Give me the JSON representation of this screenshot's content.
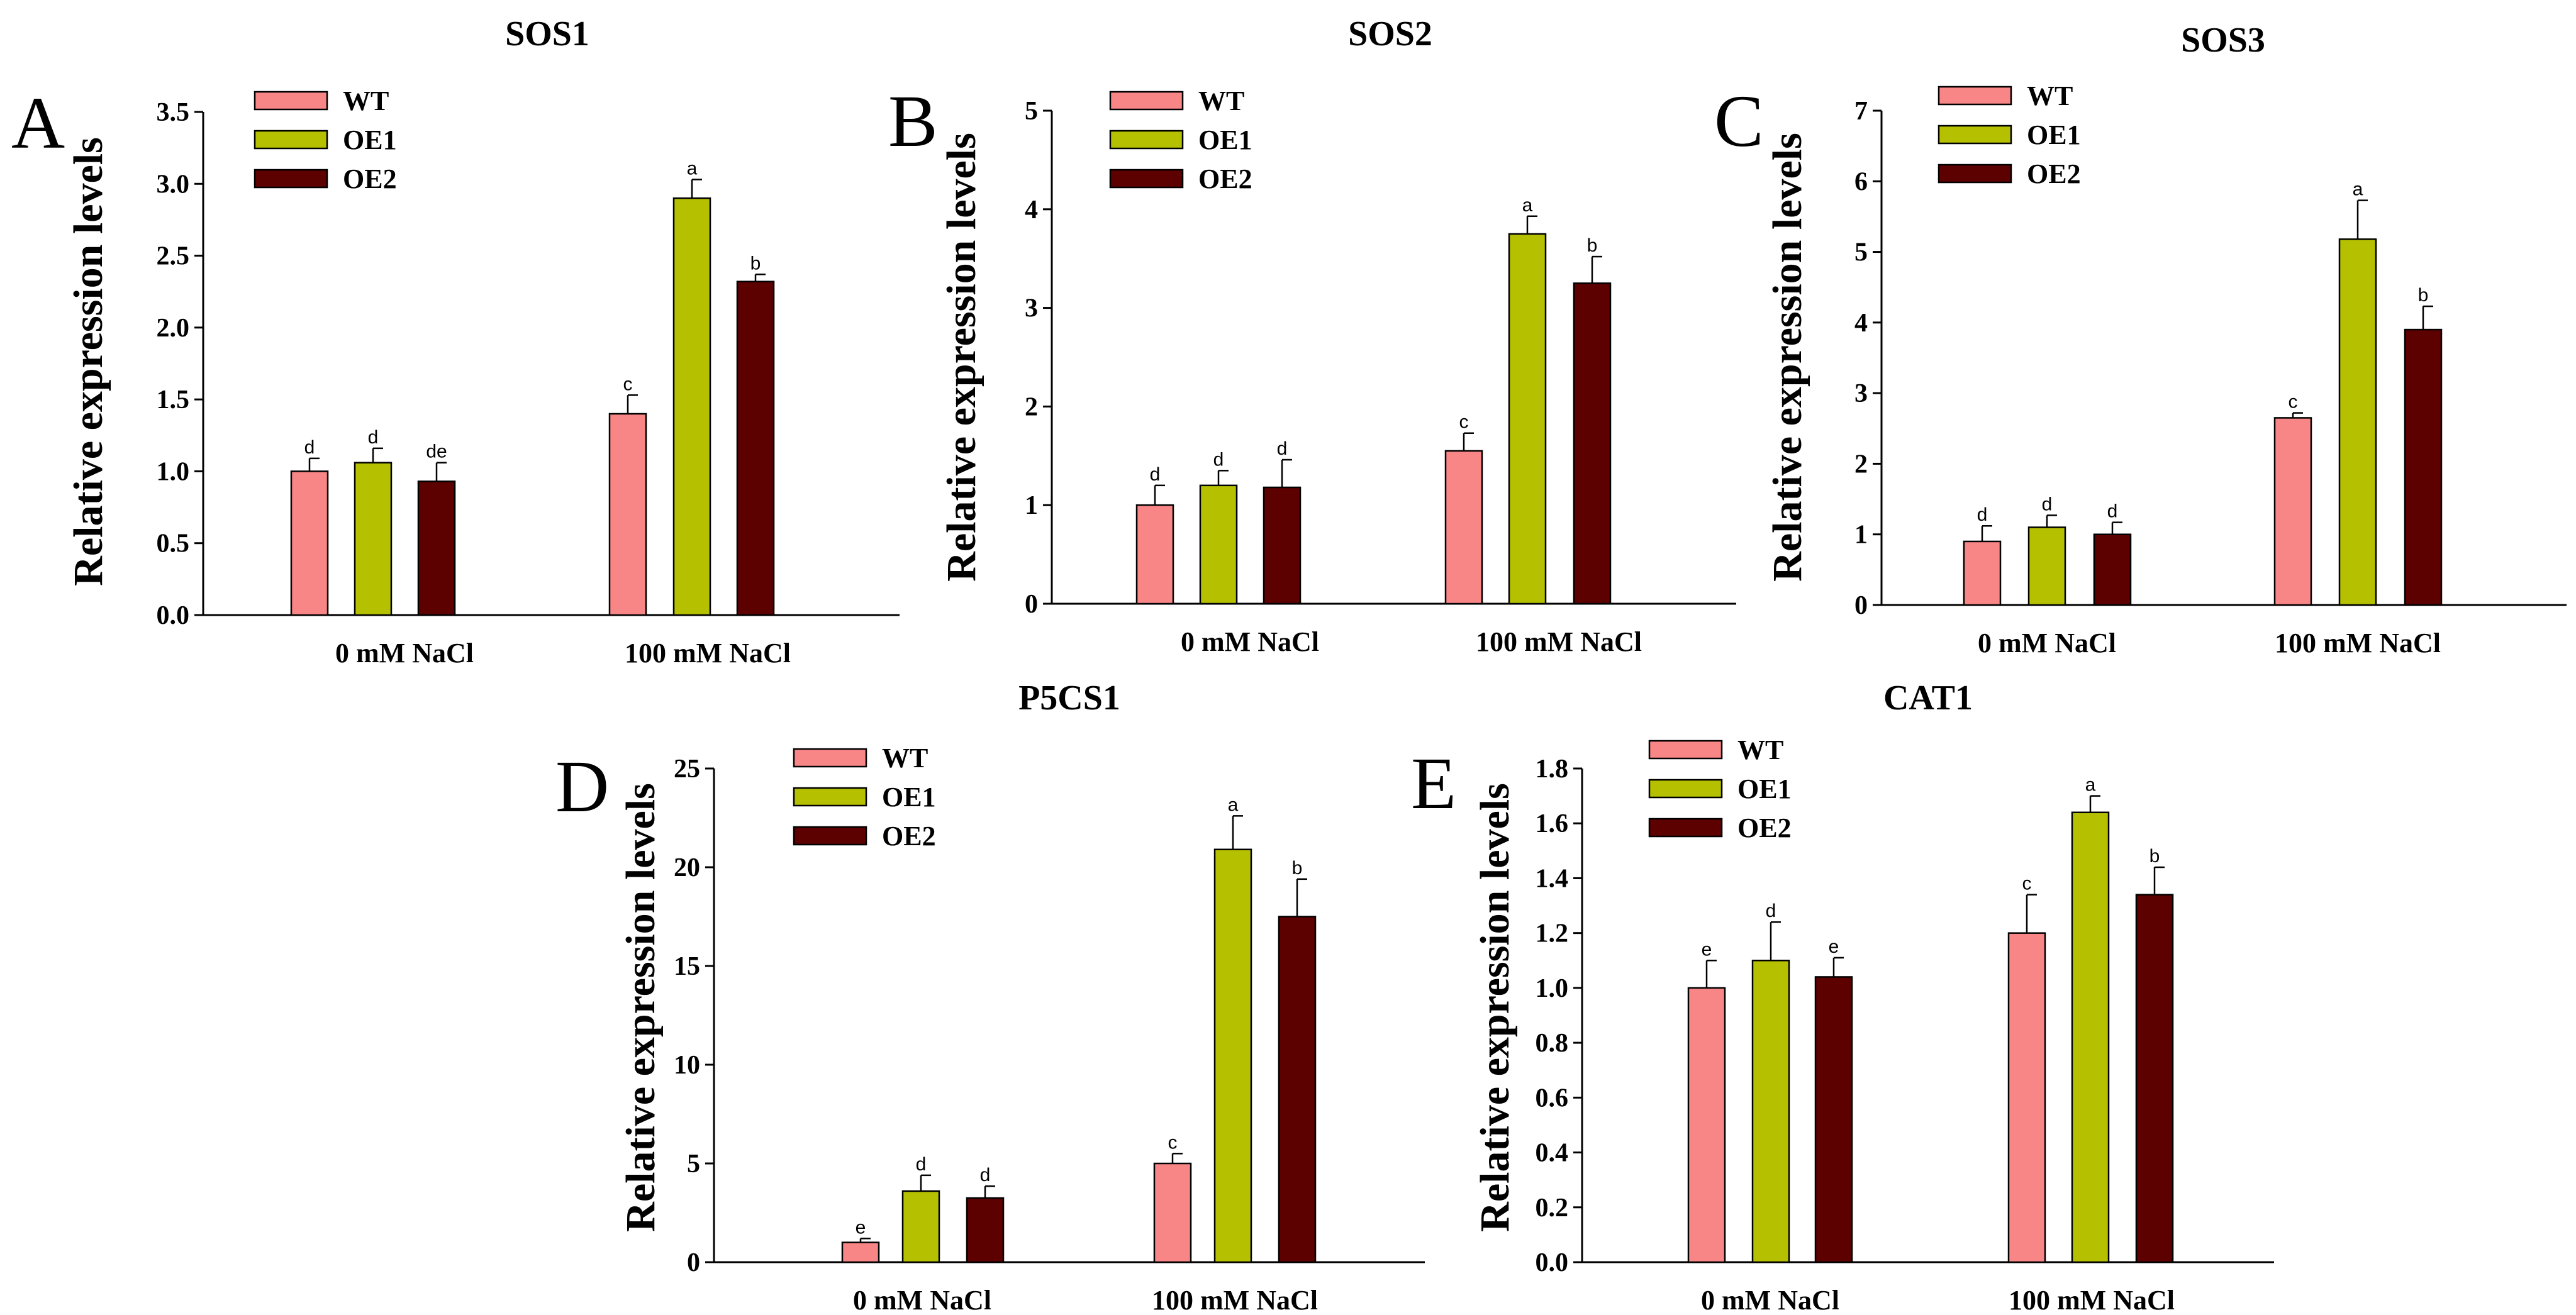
{
  "colors": {
    "WT": "#f98686",
    "OE1": "#b4c000",
    "OE2": "#5c0000"
  },
  "chart_data": [
    {
      "type": "bar",
      "panel": "A",
      "title": "SOS1",
      "ylabel": "Relative expression levels",
      "categories": [
        "0 mM NaCl",
        "100 mM NaCl"
      ],
      "ylim": [
        0,
        3.5
      ],
      "ytick_labels": [
        "0.0",
        "0.5",
        "1.0",
        "1.5",
        "2.0",
        "2.5",
        "3.0",
        "3.5"
      ],
      "series": [
        {
          "name": "WT",
          "values": [
            1.0,
            1.4
          ],
          "errors": [
            0.09,
            0.13
          ],
          "labels": [
            "d",
            "c"
          ]
        },
        {
          "name": "OE1",
          "values": [
            1.06,
            2.9
          ],
          "errors": [
            0.1,
            0.13
          ],
          "labels": [
            "d",
            "a"
          ]
        },
        {
          "name": "OE2",
          "values": [
            0.93,
            2.32
          ],
          "errors": [
            0.13,
            0.05
          ],
          "labels": [
            "de",
            "b"
          ]
        }
      ],
      "legend": "top-left",
      "grid": false
    },
    {
      "type": "bar",
      "panel": "B",
      "title": "SOS2",
      "ylabel": "Relative expression levels",
      "categories": [
        "0 mM NaCl",
        "100 mM NaCl"
      ],
      "ylim": [
        0,
        5
      ],
      "ytick_labels": [
        "0",
        "1",
        "2",
        "3",
        "4",
        "5"
      ],
      "series": [
        {
          "name": "WT",
          "values": [
            1.0,
            1.55
          ],
          "errors": [
            0.2,
            0.18
          ],
          "labels": [
            "d",
            "c"
          ]
        },
        {
          "name": "OE1",
          "values": [
            1.2,
            3.75
          ],
          "errors": [
            0.15,
            0.18
          ],
          "labels": [
            "d",
            "a"
          ]
        },
        {
          "name": "OE2",
          "values": [
            1.18,
            3.25
          ],
          "errors": [
            0.28,
            0.27
          ],
          "labels": [
            "d",
            "b"
          ]
        }
      ],
      "legend": "top-left",
      "grid": false
    },
    {
      "type": "bar",
      "panel": "C",
      "title": "SOS3",
      "ylabel": "Relative expression levels",
      "categories": [
        "0 mM NaCl",
        "100 mM NaCl"
      ],
      "ylim": [
        0,
        7
      ],
      "ytick_labels": [
        "0",
        "1",
        "2",
        "3",
        "4",
        "5",
        "6",
        "7"
      ],
      "series": [
        {
          "name": "WT",
          "values": [
            0.9,
            2.65
          ],
          "errors": [
            0.22,
            0.07
          ],
          "labels": [
            "d",
            "c"
          ]
        },
        {
          "name": "OE1",
          "values": [
            1.1,
            5.18
          ],
          "errors": [
            0.17,
            0.55
          ],
          "labels": [
            "d",
            "a"
          ]
        },
        {
          "name": "OE2",
          "values": [
            1.0,
            3.9
          ],
          "errors": [
            0.17,
            0.33
          ],
          "labels": [
            "d",
            "b"
          ]
        }
      ],
      "legend": "top-left",
      "grid": false
    },
    {
      "type": "bar",
      "panel": "D",
      "title": "P5CS1",
      "ylabel": "Relative expression levels",
      "categories": [
        "0 mM NaCl",
        "100 mM NaCl"
      ],
      "ylim": [
        0,
        25
      ],
      "ytick_labels": [
        "0",
        "5",
        "10",
        "15",
        "20",
        "25"
      ],
      "series": [
        {
          "name": "WT",
          "values": [
            1.0,
            5.0
          ],
          "errors": [
            0.2,
            0.5
          ],
          "labels": [
            "e",
            "c"
          ]
        },
        {
          "name": "OE1",
          "values": [
            3.6,
            20.9
          ],
          "errors": [
            0.8,
            1.7
          ],
          "labels": [
            "d",
            "a"
          ]
        },
        {
          "name": "OE2",
          "values": [
            3.25,
            17.5
          ],
          "errors": [
            0.6,
            1.9
          ],
          "labels": [
            "d",
            "b"
          ]
        }
      ],
      "legend": "top-left",
      "grid": false
    },
    {
      "type": "bar",
      "panel": "E",
      "title": "CAT1",
      "ylabel": "Relative expression levels",
      "categories": [
        "0 mM NaCl",
        "100 mM NaCl"
      ],
      "ylim": [
        0,
        1.8
      ],
      "ytick_labels": [
        "0.0",
        "0.2",
        "0.4",
        "0.6",
        "0.8",
        "1.0",
        "1.2",
        "1.4",
        "1.6",
        "1.8"
      ],
      "series": [
        {
          "name": "WT",
          "values": [
            1.0,
            1.2
          ],
          "errors": [
            0.1,
            0.14
          ],
          "labels": [
            "e",
            "c"
          ]
        },
        {
          "name": "OE1",
          "values": [
            1.1,
            1.64
          ],
          "errors": [
            0.14,
            0.06
          ],
          "labels": [
            "d",
            "a"
          ]
        },
        {
          "name": "OE2",
          "values": [
            1.04,
            1.34
          ],
          "errors": [
            0.07,
            0.1
          ],
          "labels": [
            "e",
            "b"
          ]
        }
      ],
      "legend": "top-left",
      "grid": false
    }
  ]
}
